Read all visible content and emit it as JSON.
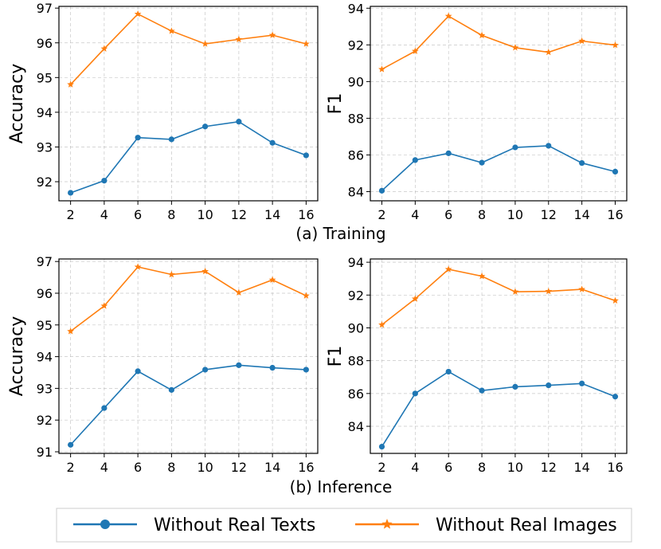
{
  "figure": {
    "caption_training": "(a) Training",
    "caption_inference": "(b) Inference"
  },
  "legend": {
    "series_text_label": "Without Real Texts",
    "series_image_label": "Without Real Images"
  },
  "colors": {
    "blue": "#1f77b4",
    "orange": "#ff7f0e"
  },
  "chart_data": [
    {
      "id": "training-accuracy",
      "type": "line",
      "title": "",
      "xlabel": "",
      "ylabel": "Accuracy",
      "x": [
        2,
        4,
        6,
        8,
        10,
        12,
        14,
        16
      ],
      "xticks": [
        "2",
        "4",
        "6",
        "8",
        "10",
        "12",
        "14",
        "16"
      ],
      "yticks": [
        92,
        93,
        94,
        95,
        96,
        97
      ],
      "ylim": [
        91.45,
        97.05
      ],
      "grid": true,
      "series": [
        {
          "name": "Without Real Texts",
          "marker": "circle",
          "values": [
            91.68,
            92.03,
            93.27,
            93.22,
            93.59,
            93.73,
            93.12,
            92.76
          ]
        },
        {
          "name": "Without Real Images",
          "marker": "star",
          "values": [
            94.8,
            95.83,
            96.83,
            96.34,
            95.97,
            96.1,
            96.22,
            95.97
          ]
        }
      ]
    },
    {
      "id": "training-f1",
      "type": "line",
      "title": "",
      "xlabel": "",
      "ylabel": "F1",
      "x": [
        2,
        4,
        6,
        8,
        10,
        12,
        14,
        16
      ],
      "xticks": [
        "2",
        "4",
        "6",
        "8",
        "10",
        "12",
        "14",
        "16"
      ],
      "yticks": [
        84,
        86,
        88,
        90,
        92,
        94
      ],
      "ylim": [
        83.5,
        94.1
      ],
      "grid": true,
      "series": [
        {
          "name": "Without Real Texts",
          "marker": "circle",
          "values": [
            84.05,
            85.72,
            86.09,
            85.58,
            86.41,
            86.5,
            85.56,
            85.09
          ]
        },
        {
          "name": "Without Real Images",
          "marker": "star",
          "values": [
            90.67,
            91.66,
            93.57,
            92.52,
            91.85,
            91.6,
            92.21,
            91.99
          ]
        }
      ]
    },
    {
      "id": "inference-accuracy",
      "type": "line",
      "title": "",
      "xlabel": "",
      "ylabel": "Accuracy",
      "x": [
        2,
        4,
        6,
        8,
        10,
        12,
        14,
        16
      ],
      "xticks": [
        "2",
        "4",
        "6",
        "8",
        "10",
        "12",
        "14",
        "16"
      ],
      "yticks": [
        91,
        92,
        93,
        94,
        95,
        96,
        97
      ],
      "ylim": [
        90.95,
        97.08
      ],
      "grid": true,
      "series": [
        {
          "name": "Without Real Texts",
          "marker": "circle",
          "values": [
            91.22,
            92.38,
            93.54,
            92.95,
            93.59,
            93.73,
            93.65,
            93.59
          ]
        },
        {
          "name": "Without Real Images",
          "marker": "star",
          "values": [
            94.8,
            95.6,
            96.83,
            96.59,
            96.69,
            96.02,
            96.42,
            95.92
          ]
        }
      ]
    },
    {
      "id": "inference-f1",
      "type": "line",
      "title": "",
      "xlabel": "",
      "ylabel": "F1",
      "x": [
        2,
        4,
        6,
        8,
        10,
        12,
        14,
        16
      ],
      "xticks": [
        "2",
        "4",
        "6",
        "8",
        "10",
        "12",
        "14",
        "16"
      ],
      "yticks": [
        84,
        86,
        88,
        90,
        92,
        94
      ],
      "ylim": [
        82.35,
        94.2
      ],
      "grid": true,
      "series": [
        {
          "name": "Without Real Texts",
          "marker": "circle",
          "values": [
            82.76,
            86.0,
            87.33,
            86.18,
            86.41,
            86.5,
            86.61,
            85.81
          ]
        },
        {
          "name": "Without Real Images",
          "marker": "star",
          "values": [
            90.19,
            91.77,
            93.57,
            93.15,
            92.2,
            92.23,
            92.35,
            91.66
          ]
        }
      ]
    }
  ]
}
